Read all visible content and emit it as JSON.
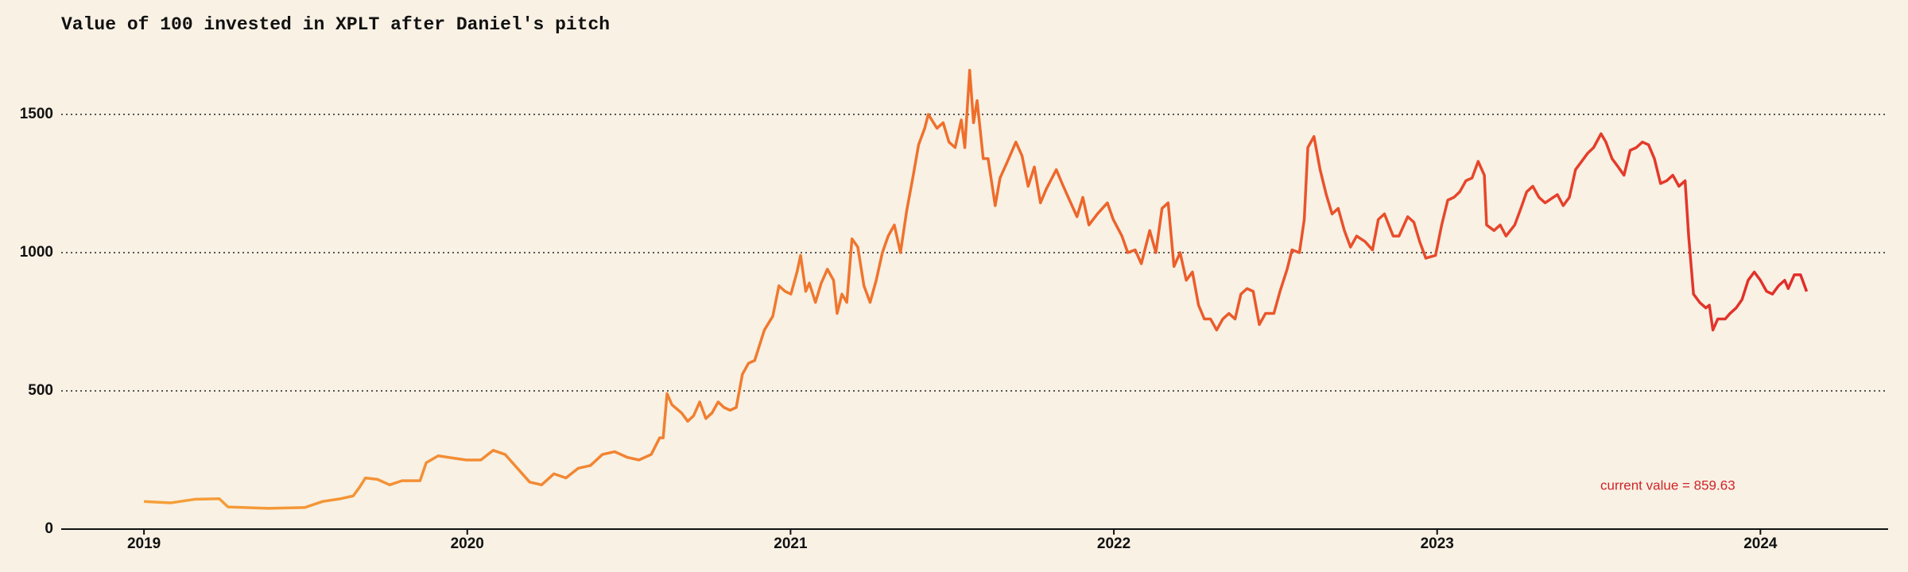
{
  "chart_data": {
    "type": "line",
    "title": "Value of 100 invested in XPLT after Daniel's pitch",
    "annotation": "current value = 859.63",
    "line_gradient": [
      "#f6a53a",
      "#ef6e2c",
      "#e0262a"
    ],
    "grid": true,
    "xlim": [
      2018.744,
      2024.395
    ],
    "xticks": [
      2019,
      2020,
      2021,
      2022,
      2023,
      2024
    ],
    "ylim": [
      0,
      1750
    ],
    "yticks": [
      0,
      500,
      1000,
      1500
    ],
    "x": [
      2019.0,
      2019.083,
      2019.158,
      2019.233,
      2019.26,
      2019.384,
      2019.497,
      2019.553,
      2019.609,
      2019.647,
      2019.666,
      2019.685,
      2019.722,
      2019.76,
      2019.798,
      2019.854,
      2019.873,
      2019.91,
      2019.967,
      2019.997,
      2020.042,
      2020.08,
      2020.117,
      2020.155,
      2020.193,
      2020.23,
      2020.268,
      2020.305,
      2020.343,
      2020.381,
      2020.418,
      2020.456,
      2020.494,
      2020.531,
      2020.569,
      2020.595,
      2020.606,
      2020.618,
      2020.633,
      2020.663,
      2020.682,
      2020.7,
      2020.719,
      2020.738,
      2020.757,
      2020.776,
      2020.794,
      2020.813,
      2020.832,
      2020.851,
      2020.87,
      2020.889,
      2020.919,
      2020.945,
      2020.964,
      2020.983,
      2021.001,
      2021.02,
      2021.031,
      2021.047,
      2021.058,
      2021.077,
      2021.095,
      2021.114,
      2021.133,
      2021.144,
      2021.159,
      2021.174,
      2021.19,
      2021.208,
      2021.227,
      2021.246,
      2021.265,
      2021.284,
      2021.302,
      2021.321,
      2021.34,
      2021.359,
      2021.378,
      2021.396,
      2021.415,
      2021.426,
      2021.453,
      2021.472,
      2021.49,
      2021.509,
      2021.528,
      2021.539,
      2021.554,
      2021.566,
      2021.577,
      2021.596,
      2021.611,
      2021.633,
      2021.648,
      2021.671,
      2021.697,
      2021.716,
      2021.735,
      2021.754,
      2021.773,
      2021.791,
      2021.822,
      2021.84,
      2021.859,
      2021.886,
      2021.904,
      2021.923,
      2021.949,
      2021.98,
      2021.998,
      2022.025,
      2022.043,
      2022.066,
      2022.085,
      2022.111,
      2022.13,
      2022.149,
      2022.168,
      2022.186,
      2022.205,
      2022.224,
      2022.243,
      2022.262,
      2022.28,
      2022.299,
      2022.318,
      2022.337,
      2022.356,
      2022.375,
      2022.393,
      2022.412,
      2022.431,
      2022.45,
      2022.469,
      2022.495,
      2022.514,
      2022.536,
      2022.551,
      2022.574,
      2022.589,
      2022.6,
      2022.619,
      2022.638,
      2022.657,
      2022.675,
      2022.694,
      2022.713,
      2022.732,
      2022.751,
      2022.777,
      2022.8,
      2022.818,
      2022.837,
      2022.864,
      2022.882,
      2022.909,
      2022.928,
      2022.946,
      2022.965,
      2022.995,
      2023.014,
      2023.033,
      2023.052,
      2023.07,
      2023.089,
      2023.108,
      2023.127,
      2023.146,
      2023.153,
      2023.176,
      2023.195,
      2023.213,
      2023.24,
      2023.259,
      2023.277,
      2023.296,
      2023.315,
      2023.334,
      2023.372,
      2023.39,
      2023.409,
      2023.428,
      2023.447,
      2023.466,
      2023.484,
      2023.507,
      2023.522,
      2023.541,
      2023.56,
      2023.578,
      2023.597,
      2023.616,
      2023.635,
      2023.654,
      2023.672,
      2023.691,
      2023.71,
      2023.729,
      2023.748,
      2023.767,
      2023.778,
      2023.793,
      2023.812,
      2023.831,
      2023.842,
      2023.853,
      2023.868,
      2023.891,
      2023.906,
      2023.925,
      2023.943,
      2023.962,
      2023.981,
      2024.0,
      2024.019,
      2024.037,
      2024.056,
      2024.075,
      2024.086,
      2024.105,
      2024.124,
      2024.143
    ],
    "values": [
      100,
      95,
      108,
      110,
      80,
      75,
      78,
      100,
      110,
      120,
      150,
      185,
      180,
      160,
      175,
      175,
      240,
      265,
      255,
      250,
      250,
      285,
      270,
      220,
      170,
      160,
      200,
      185,
      220,
      230,
      270,
      280,
      260,
      250,
      270,
      330,
      330,
      490,
      450,
      420,
      390,
      410,
      460,
      400,
      420,
      460,
      440,
      430,
      440,
      560,
      600,
      610,
      720,
      770,
      880,
      860,
      850,
      930,
      990,
      860,
      890,
      820,
      890,
      940,
      900,
      780,
      850,
      820,
      1050,
      1020,
      880,
      820,
      900,
      1000,
      1060,
      1100,
      1000,
      1150,
      1270,
      1390,
      1450,
      1500,
      1450,
      1470,
      1400,
      1380,
      1480,
      1380,
      1660,
      1470,
      1550,
      1340,
      1340,
      1170,
      1270,
      1330,
      1400,
      1350,
      1240,
      1310,
      1180,
      1230,
      1300,
      1250,
      1200,
      1130,
      1200,
      1100,
      1140,
      1180,
      1120,
      1060,
      1000,
      1010,
      960,
      1080,
      1000,
      1160,
      1180,
      950,
      1000,
      900,
      930,
      810,
      760,
      760,
      720,
      760,
      780,
      760,
      850,
      870,
      860,
      740,
      780,
      780,
      860,
      940,
      1010,
      1000,
      1120,
      1380,
      1420,
      1300,
      1210,
      1140,
      1160,
      1080,
      1020,
      1060,
      1040,
      1010,
      1120,
      1140,
      1060,
      1060,
      1130,
      1110,
      1040,
      980,
      990,
      1100,
      1190,
      1200,
      1220,
      1260,
      1270,
      1330,
      1280,
      1100,
      1080,
      1100,
      1060,
      1100,
      1160,
      1220,
      1240,
      1200,
      1180,
      1210,
      1170,
      1200,
      1300,
      1330,
      1360,
      1380,
      1430,
      1400,
      1340,
      1310,
      1280,
      1370,
      1380,
      1400,
      1390,
      1340,
      1250,
      1260,
      1280,
      1240,
      1260,
      1060,
      850,
      820,
      800,
      810,
      720,
      760,
      760,
      780,
      800,
      830,
      900,
      930,
      900,
      860,
      850,
      880,
      900,
      870,
      920,
      920,
      859.63
    ]
  }
}
